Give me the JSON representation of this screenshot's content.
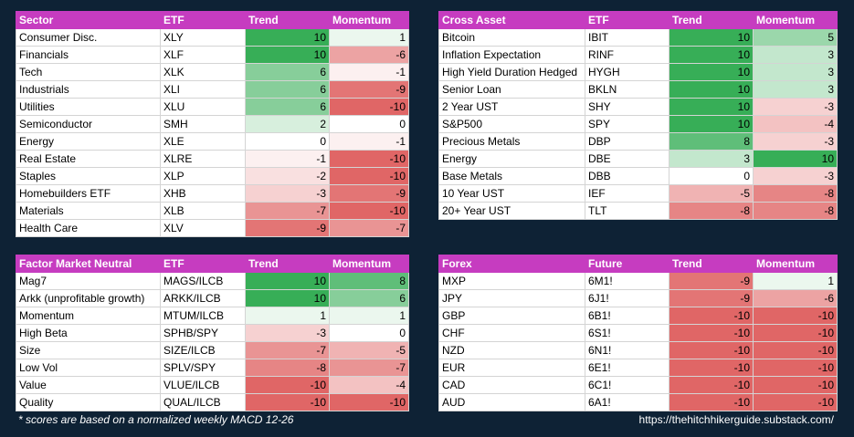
{
  "tables": [
    {
      "headers": [
        "Sector",
        "ETF",
        "Trend",
        "Momentum"
      ],
      "rows": [
        [
          "Consumer Disc.",
          "XLY",
          10,
          1
        ],
        [
          "Financials",
          "XLF",
          10,
          -6
        ],
        [
          "Tech",
          "XLK",
          6,
          -1
        ],
        [
          "Industrials",
          "XLI",
          6,
          -9
        ],
        [
          "Utilities",
          "XLU",
          6,
          -10
        ],
        [
          "Semiconductor",
          "SMH",
          2,
          0
        ],
        [
          "Energy",
          "XLE",
          0,
          -1
        ],
        [
          "Real Estate",
          "XLRE",
          -1,
          -10
        ],
        [
          "Staples",
          "XLP",
          -2,
          -10
        ],
        [
          "Homebuilders ETF",
          "XHB",
          -3,
          -9
        ],
        [
          "Materials",
          "XLB",
          -7,
          -10
        ],
        [
          "Health Care",
          "XLV",
          -9,
          -7
        ]
      ]
    },
    {
      "headers": [
        "Cross Asset",
        "ETF",
        "Trend",
        "Momentum"
      ],
      "rows": [
        [
          "Bitcoin",
          "IBIT",
          10,
          5
        ],
        [
          "Inflation Expectation",
          "RINF",
          10,
          3
        ],
        [
          "High Yield Duration Hedged",
          "HYGH",
          10,
          3
        ],
        [
          "Senior Loan",
          "BKLN",
          10,
          3
        ],
        [
          "2 Year UST",
          "SHY",
          10,
          -3
        ],
        [
          "S&P500",
          "SPY",
          10,
          -4
        ],
        [
          "Precious Metals",
          "DBP",
          8,
          -3
        ],
        [
          "Energy",
          "DBE",
          3,
          10
        ],
        [
          "Base Metals",
          "DBB",
          0,
          -3
        ],
        [
          "10 Year UST",
          "IEF",
          -5,
          -8
        ],
        [
          "20+ Year UST",
          "TLT",
          -8,
          -8
        ]
      ]
    },
    {
      "headers": [
        "Factor Market Neutral",
        "ETF",
        "Trend",
        "Momentum"
      ],
      "rows": [
        [
          "Mag7",
          "MAGS/ILCB",
          10,
          8
        ],
        [
          "Arkk (unprofitable growth)",
          "ARKK/ILCB",
          10,
          6
        ],
        [
          "Momentum",
          "MTUM/ILCB",
          1,
          1
        ],
        [
          "High Beta",
          "SPHB/SPY",
          -3,
          0
        ],
        [
          "Size",
          "SIZE/ILCB",
          -7,
          -5
        ],
        [
          "Low Vol",
          "SPLV/SPY",
          -8,
          -7
        ],
        [
          "Value",
          "VLUE/ILCB",
          -10,
          -4
        ],
        [
          "Quality",
          "QUAL/ILCB",
          -10,
          -10
        ]
      ]
    },
    {
      "headers": [
        "Forex",
        "Future",
        "Trend",
        "Momentum"
      ],
      "rows": [
        [
          "MXP",
          "6M1!",
          -9,
          1
        ],
        [
          "JPY",
          "6J1!",
          -9,
          -6
        ],
        [
          "GBP",
          "6B1!",
          -10,
          -10
        ],
        [
          "CHF",
          "6S1!",
          -10,
          -10
        ],
        [
          "NZD",
          "6N1!",
          -10,
          -10
        ],
        [
          "EUR",
          "6E1!",
          -10,
          -10
        ],
        [
          "CAD",
          "6C1!",
          -10,
          -10
        ],
        [
          "AUD",
          "6A1!",
          -10,
          -10
        ]
      ]
    }
  ],
  "footnote": "* scores are based on a normalized weekly MACD 12-26",
  "url": "https://thehitchhikerguide.substack.com/"
}
